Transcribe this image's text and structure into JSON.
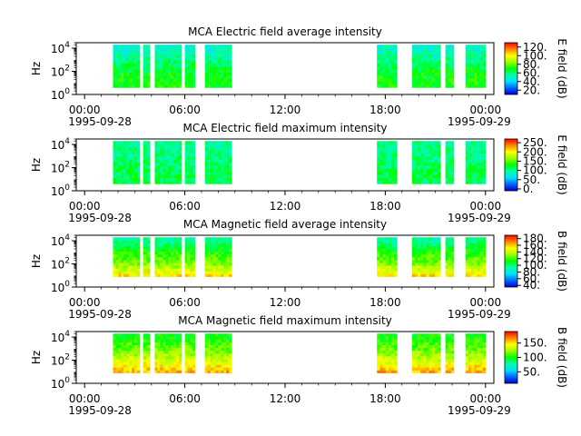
{
  "figure": {
    "x_ticks": [
      "00:00",
      "06:00",
      "12:00",
      "18:00",
      "00:00"
    ],
    "x_tick_hours": [
      0,
      6,
      12,
      18,
      24
    ],
    "x_dates": [
      "1995-09-28",
      "1995-09-29"
    ],
    "x_range_hours": [
      -0.5,
      24.5
    ]
  },
  "chart_data": [
    {
      "type": "heatmap",
      "title": "MCA  Electric field average intensity",
      "ylabel": "Hz",
      "yscale": "log",
      "y_ticks": [
        "10^4",
        "10^2",
        "10^0"
      ],
      "ylim": [
        1,
        30000
      ],
      "colorbar": {
        "label": "E field (dB)",
        "ticks": [
          "120.",
          "100.",
          "80.",
          "60.",
          "40.",
          "20."
        ],
        "tick_values": [
          120,
          100,
          80,
          60,
          40,
          20
        ],
        "range": [
          10,
          130
        ]
      },
      "segments_hours": [
        [
          1.7,
          3.3
        ],
        [
          3.5,
          3.9
        ],
        [
          4.2,
          5.8
        ],
        [
          6.0,
          6.6
        ],
        [
          7.2,
          8.8
        ],
        [
          17.5,
          18.7
        ],
        [
          19.6,
          21.3
        ],
        [
          21.6,
          22.1
        ],
        [
          22.8,
          24.0
        ]
      ],
      "spectrum_db": [
        [
          60,
          70
        ],
        [
          1000,
          58
        ],
        [
          10000,
          50
        ]
      ]
    },
    {
      "type": "heatmap",
      "title": "MCA  Electric field maximum intensity",
      "ylabel": "Hz",
      "yscale": "log",
      "y_ticks": [
        "10^4",
        "10^2",
        "10^0"
      ],
      "ylim": [
        1,
        30000
      ],
      "colorbar": {
        "label": "E field (dB)",
        "ticks": [
          "250.",
          "200.",
          "150.",
          "100.",
          "50.",
          "0."
        ],
        "tick_values": [
          250,
          200,
          150,
          100,
          50,
          0
        ],
        "range": [
          -10,
          270
        ]
      },
      "segments_hours": [
        [
          1.7,
          3.3
        ],
        [
          3.5,
          3.9
        ],
        [
          4.2,
          5.8
        ],
        [
          6.0,
          6.6
        ],
        [
          7.2,
          8.8
        ],
        [
          17.5,
          18.7
        ],
        [
          19.6,
          21.3
        ],
        [
          21.6,
          22.1
        ],
        [
          22.8,
          24.0
        ]
      ],
      "spectrum_db": [
        [
          60,
          115
        ],
        [
          1000,
          105
        ],
        [
          10000,
          100
        ]
      ]
    },
    {
      "type": "heatmap",
      "title": "MCA  Magnetic field average intensity",
      "ylabel": "Hz",
      "yscale": "log",
      "y_ticks": [
        "10^4",
        "10^2",
        "10^0"
      ],
      "ylim": [
        1,
        30000
      ],
      "colorbar": {
        "label": "B field (dB)",
        "ticks": [
          "180.",
          "160.",
          "140.",
          "120.",
          "100.",
          "80.",
          "60.",
          "40."
        ],
        "tick_values": [
          180,
          160,
          140,
          120,
          100,
          80,
          60,
          40
        ],
        "range": [
          35,
          190
        ]
      },
      "segments_hours": [
        [
          1.7,
          3.3
        ],
        [
          3.5,
          3.9
        ],
        [
          4.2,
          5.8
        ],
        [
          6.0,
          6.6
        ],
        [
          7.2,
          8.8
        ],
        [
          17.5,
          18.7
        ],
        [
          19.6,
          21.3
        ],
        [
          21.6,
          22.1
        ],
        [
          22.8,
          24.0
        ]
      ],
      "spectrum_db": [
        [
          10,
          155
        ],
        [
          100,
          130
        ],
        [
          1000,
          115
        ],
        [
          10000,
          95
        ]
      ]
    },
    {
      "type": "heatmap",
      "title": "MCA  Magnetic field maximum intensity",
      "ylabel": "Hz",
      "yscale": "log",
      "y_ticks": [
        "10^4",
        "10^2",
        "10^0"
      ],
      "ylim": [
        1,
        30000
      ],
      "colorbar": {
        "label": "B field (dB)",
        "ticks": [
          "150.",
          "100.",
          "50."
        ],
        "tick_values": [
          150,
          100,
          50
        ],
        "range": [
          10,
          190
        ]
      },
      "segments_hours": [
        [
          1.7,
          3.3
        ],
        [
          3.5,
          3.9
        ],
        [
          4.2,
          5.8
        ],
        [
          6.0,
          6.6
        ],
        [
          7.2,
          8.8
        ],
        [
          17.5,
          18.7
        ],
        [
          19.6,
          21.3
        ],
        [
          21.6,
          22.1
        ],
        [
          22.8,
          24.0
        ]
      ],
      "spectrum_db": [
        [
          10,
          160
        ],
        [
          100,
          135
        ],
        [
          1000,
          115
        ],
        [
          10000,
          100
        ]
      ]
    }
  ]
}
